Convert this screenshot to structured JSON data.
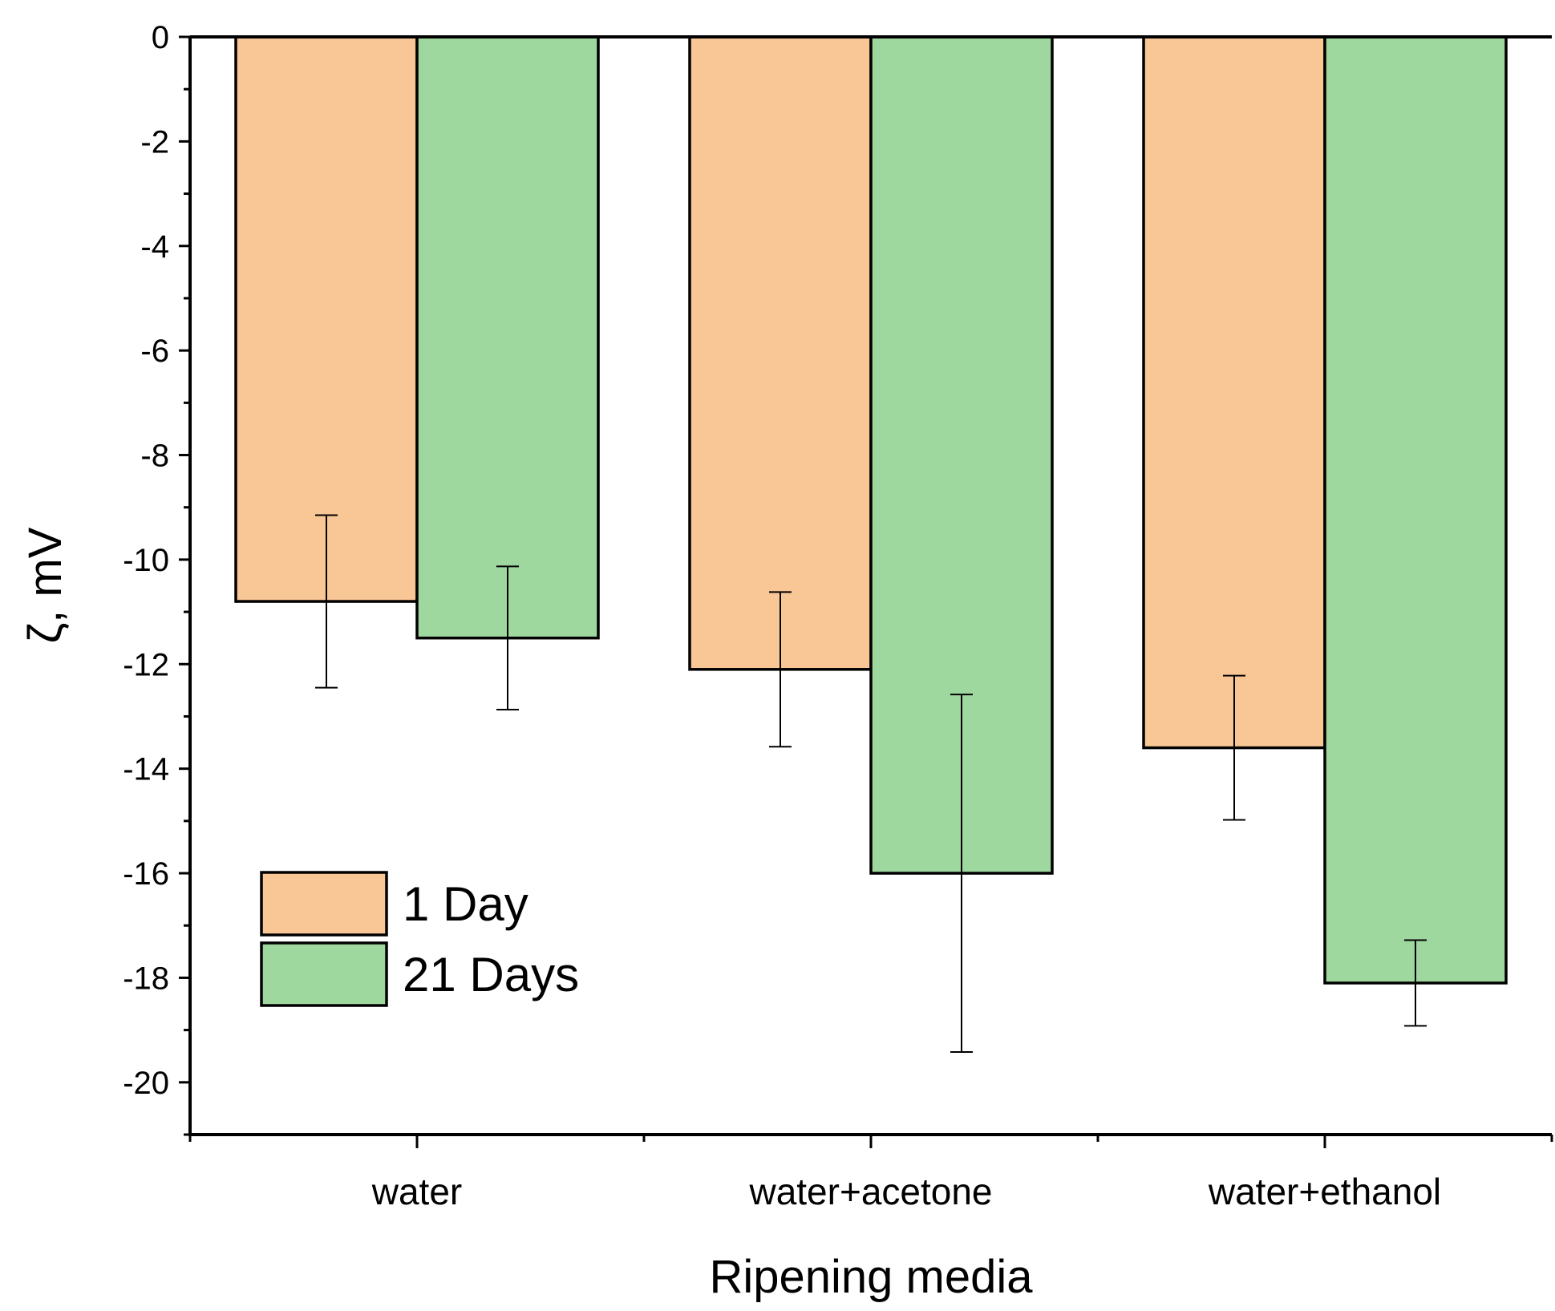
{
  "chart_data": {
    "type": "bar",
    "title": "",
    "xlabel": "Ripening media",
    "ylabel": "ζ, mV",
    "categories": [
      "water",
      "water+acetone",
      "water+ethanol"
    ],
    "ylim": [
      -21,
      0
    ],
    "yticks": [
      0,
      -2,
      -4,
      -6,
      -8,
      -10,
      -12,
      -14,
      -16,
      -18,
      -20
    ],
    "ytick_labels": [
      "0",
      "-2",
      "-4",
      "-6",
      "-8",
      "-10",
      "-12",
      "-14",
      "-16",
      "-18",
      "-20"
    ],
    "series": [
      {
        "name": "1 Day",
        "color": "#f9c796",
        "values": [
          -10.8,
          -12.1,
          -13.6
        ],
        "errors": [
          1.65,
          1.48,
          1.38
        ]
      },
      {
        "name": "21 Days",
        "color": "#9fd89e",
        "values": [
          -11.5,
          -16.0,
          -18.1
        ],
        "errors": [
          1.37,
          3.42,
          0.82
        ]
      }
    ],
    "legend": {
      "position": "bottom-left",
      "entries": [
        "1 Day",
        "21 Days"
      ]
    },
    "grid": false
  }
}
